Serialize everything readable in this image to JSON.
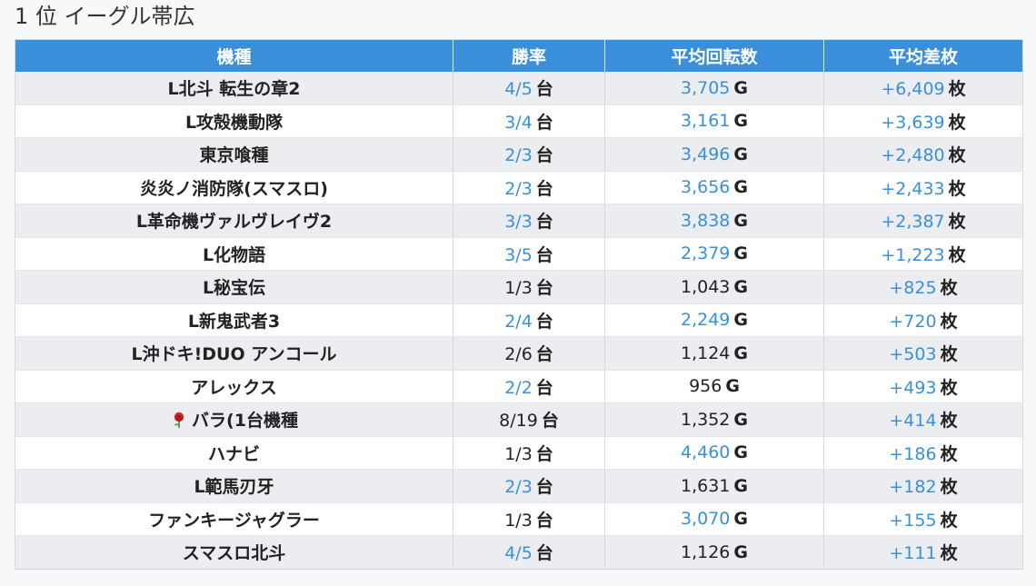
{
  "title": "1 位 イーグル帯広",
  "table": {
    "headers": [
      "機種",
      "勝率",
      "平均回転数",
      "平均差枚"
    ],
    "rows": [
      {
        "name": "L北斗 転生の章2",
        "win": "4/5",
        "win_unit": "台",
        "win_hl": true,
        "spins": "3,705",
        "spins_unit": "G",
        "spins_hl": true,
        "diff": "+6,409",
        "diff_unit": "枚",
        "diff_hl": true
      },
      {
        "name": "L攻殻機動隊",
        "win": "3/4",
        "win_unit": "台",
        "win_hl": true,
        "spins": "3,161",
        "spins_unit": "G",
        "spins_hl": true,
        "diff": "+3,639",
        "diff_unit": "枚",
        "diff_hl": true
      },
      {
        "name": "東京喰種",
        "win": "2/3",
        "win_unit": "台",
        "win_hl": true,
        "spins": "3,496",
        "spins_unit": "G",
        "spins_hl": true,
        "diff": "+2,480",
        "diff_unit": "枚",
        "diff_hl": true
      },
      {
        "name": "炎炎ノ消防隊(スマスロ)",
        "win": "2/3",
        "win_unit": "台",
        "win_hl": true,
        "spins": "3,656",
        "spins_unit": "G",
        "spins_hl": true,
        "diff": "+2,433",
        "diff_unit": "枚",
        "diff_hl": true
      },
      {
        "name": "L革命機ヴァルヴレイヴ2",
        "win": "3/3",
        "win_unit": "台",
        "win_hl": true,
        "spins": "3,838",
        "spins_unit": "G",
        "spins_hl": true,
        "diff": "+2,387",
        "diff_unit": "枚",
        "diff_hl": true
      },
      {
        "name": "L化物語",
        "win": "3/5",
        "win_unit": "台",
        "win_hl": true,
        "spins": "2,379",
        "spins_unit": "G",
        "spins_hl": true,
        "diff": "+1,223",
        "diff_unit": "枚",
        "diff_hl": true
      },
      {
        "name": "L秘宝伝",
        "win": "1/3",
        "win_unit": "台",
        "win_hl": false,
        "spins": "1,043",
        "spins_unit": "G",
        "spins_hl": false,
        "diff": "+825",
        "diff_unit": "枚",
        "diff_hl": true
      },
      {
        "name": "L新鬼武者3",
        "win": "2/4",
        "win_unit": "台",
        "win_hl": true,
        "spins": "2,249",
        "spins_unit": "G",
        "spins_hl": true,
        "diff": "+720",
        "diff_unit": "枚",
        "diff_hl": true
      },
      {
        "name": "L沖ドキ!DUO アンコール",
        "win": "2/6",
        "win_unit": "台",
        "win_hl": false,
        "spins": "1,124",
        "spins_unit": "G",
        "spins_hl": false,
        "diff": "+503",
        "diff_unit": "枚",
        "diff_hl": true
      },
      {
        "name": "アレックス",
        "win": "2/2",
        "win_unit": "台",
        "win_hl": true,
        "spins": "956",
        "spins_unit": "G",
        "spins_hl": false,
        "diff": "+493",
        "diff_unit": "枚",
        "diff_hl": true
      },
      {
        "name": "バラ(1台機種",
        "icon": "rose-icon",
        "win": "8/19",
        "win_unit": "台",
        "win_hl": false,
        "spins": "1,352",
        "spins_unit": "G",
        "spins_hl": false,
        "diff": "+414",
        "diff_unit": "枚",
        "diff_hl": true
      },
      {
        "name": "ハナビ",
        "win": "1/3",
        "win_unit": "台",
        "win_hl": false,
        "spins": "4,460",
        "spins_unit": "G",
        "spins_hl": true,
        "diff": "+186",
        "diff_unit": "枚",
        "diff_hl": true
      },
      {
        "name": "L範馬刃牙",
        "win": "2/3",
        "win_unit": "台",
        "win_hl": true,
        "spins": "1,631",
        "spins_unit": "G",
        "spins_hl": false,
        "diff": "+182",
        "diff_unit": "枚",
        "diff_hl": true
      },
      {
        "name": "ファンキージャグラー",
        "win": "1/3",
        "win_unit": "台",
        "win_hl": false,
        "spins": "3,070",
        "spins_unit": "G",
        "spins_hl": true,
        "diff": "+155",
        "diff_unit": "枚",
        "diff_hl": true
      },
      {
        "name": "スマスロ北斗",
        "win": "4/5",
        "win_unit": "台",
        "win_hl": true,
        "spins": "1,126",
        "spins_unit": "G",
        "spins_hl": false,
        "diff": "+111",
        "diff_unit": "枚",
        "diff_hl": true
      }
    ]
  },
  "colors": {
    "header_bg": "#3a8fdb",
    "highlight_text": "#3a8fdb",
    "row_odd": "#ebedf0",
    "row_even": "#ffffff"
  }
}
